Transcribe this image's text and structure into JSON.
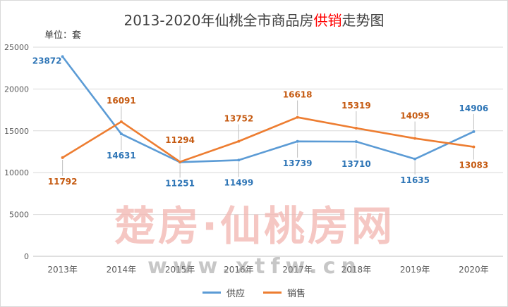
{
  "title": {
    "prefix": "2013-2020年仙桃全市商品房",
    "highlight": "供销",
    "suffix": "走势图"
  },
  "unit_label": "单位：套",
  "watermark": {
    "logo_text": "楚房·仙桃房网",
    "url_text": "www.xtfw.cn"
  },
  "colors": {
    "supply": "#5b9bd5",
    "sales": "#ed7d31",
    "supply_label": "#2e75b6",
    "sales_label": "#c55a11",
    "highlight": "#ff0000",
    "watermark": "#f2b5b0"
  },
  "chart_data": {
    "type": "line",
    "categories": [
      "2013年",
      "2014年",
      "2015年",
      "2016年",
      "2017年",
      "2018年",
      "2019年",
      "2020年"
    ],
    "series": [
      {
        "name": "供应",
        "values": [
          23872,
          14631,
          11251,
          11499,
          13739,
          13710,
          11635,
          14906
        ]
      },
      {
        "name": "销售",
        "values": [
          11792,
          16091,
          11294,
          13752,
          16618,
          15319,
          14095,
          13083
        ]
      }
    ],
    "ylim": [
      0,
      25000
    ],
    "yticks": [
      0,
      5000,
      10000,
      15000,
      20000,
      25000
    ],
    "grid": true,
    "legend_position": "bottom",
    "data_labels": true
  }
}
